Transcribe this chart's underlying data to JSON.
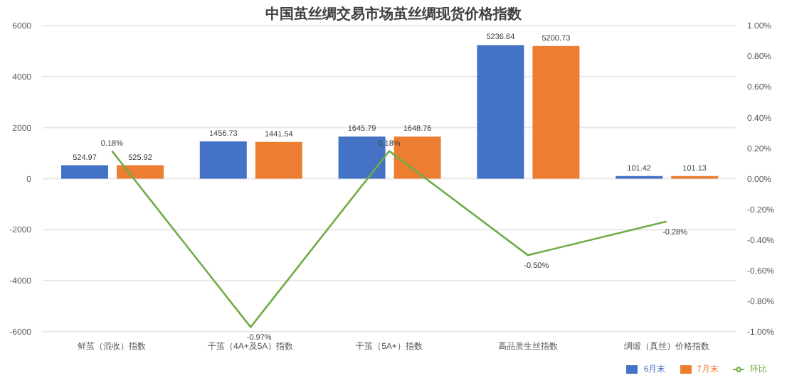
{
  "chart_data": {
    "type": "bar",
    "title": "中国茧丝绸交易市场茧丝绸现货价格指数",
    "categories": [
      "鲜茧（混收）指数",
      "干茧（4A+及5A）指数",
      "干茧（5A+）指数",
      "高品质生丝指数",
      "绸缎（真丝）价格指数"
    ],
    "series": [
      {
        "name": "6月末",
        "color": "#4472c4",
        "values": [
          524.97,
          1456.73,
          1645.79,
          5236.64,
          101.42
        ],
        "value_labels": [
          "524.97",
          "1456.73",
          "1645.79",
          "5236.64",
          "101.42"
        ]
      },
      {
        "name": "7月末",
        "color": "#ed7d31",
        "values": [
          525.92,
          1441.54,
          1648.76,
          5200.73,
          101.13
        ],
        "value_labels": [
          "525.92",
          "1441.54",
          "1648.76",
          "5200.73",
          "101.13"
        ]
      },
      {
        "name": "环比",
        "type": "line",
        "axis": "y2",
        "color": "#70ad47",
        "values": [
          0.18,
          -0.97,
          0.18,
          -0.5,
          -0.28
        ],
        "value_labels": [
          "0.18%",
          "-0.97%",
          "0.18%",
          "-0.50%",
          "-0.28%"
        ]
      }
    ],
    "ylim": [
      -6000,
      6000
    ],
    "yticks": [
      -6000,
      -4000,
      -2000,
      0,
      2000,
      4000,
      6000
    ],
    "y2lim": [
      -1,
      1
    ],
    "y2ticks": [
      {
        "value": -1,
        "label": "-1.00%"
      },
      {
        "value": -0.8,
        "label": "-0.80%"
      },
      {
        "value": -0.6,
        "label": "-0.60%"
      },
      {
        "value": -0.4,
        "label": "-0.40%"
      },
      {
        "value": -0.2,
        "label": "-0.20%"
      },
      {
        "value": 0,
        "label": "0.00%"
      },
      {
        "value": 0.2,
        "label": "0.20%"
      },
      {
        "value": 0.4,
        "label": "0.40%"
      },
      {
        "value": 0.6,
        "label": "0.60%"
      },
      {
        "value": 0.8,
        "label": "0.80%"
      },
      {
        "value": 1,
        "label": "1.00%"
      }
    ],
    "grid": "y",
    "legend": "bottom right",
    "marker": "none"
  }
}
